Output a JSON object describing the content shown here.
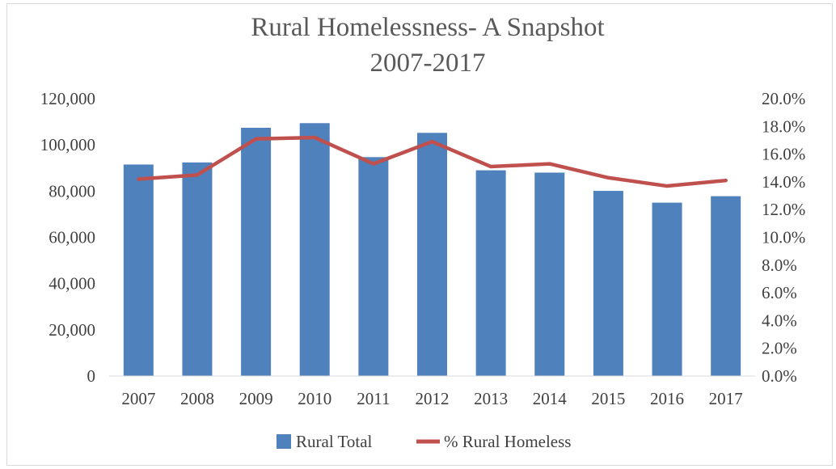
{
  "chart_data": {
    "type": "bar",
    "title": "Rural Homelessness- A Snapshot",
    "subtitle": "2007-2017",
    "categories": [
      "2007",
      "2008",
      "2009",
      "2010",
      "2011",
      "2012",
      "2013",
      "2014",
      "2015",
      "2016",
      "2017"
    ],
    "series": [
      {
        "name": "Rural Total",
        "type": "bar",
        "axis": "left",
        "color": "#4f81bd",
        "values": [
          91500,
          92400,
          107400,
          109400,
          94700,
          105200,
          89000,
          88000,
          80100,
          75000,
          77800
        ]
      },
      {
        "name": "% Rural Homeless",
        "type": "line",
        "axis": "right",
        "color": "#c0504d",
        "values": [
          14.2,
          14.5,
          17.1,
          17.2,
          15.3,
          16.9,
          15.1,
          15.3,
          14.3,
          13.7,
          14.1
        ]
      }
    ],
    "y_left": {
      "lim": [
        0,
        120000
      ],
      "ticks": [
        0,
        20000,
        40000,
        60000,
        80000,
        100000,
        120000
      ],
      "tick_labels": [
        "0",
        "20,000",
        "40,000",
        "60,000",
        "80,000",
        "100,000",
        "120,000"
      ]
    },
    "y_right": {
      "lim": [
        0,
        20
      ],
      "ticks": [
        0,
        2,
        4,
        6,
        8,
        10,
        12,
        14,
        16,
        18,
        20
      ],
      "tick_labels": [
        "0.0%",
        "2.0%",
        "4.0%",
        "6.0%",
        "8.0%",
        "10.0%",
        "12.0%",
        "14.0%",
        "16.0%",
        "18.0%",
        "20.0%"
      ]
    },
    "grid": false,
    "legend_position": "bottom"
  }
}
